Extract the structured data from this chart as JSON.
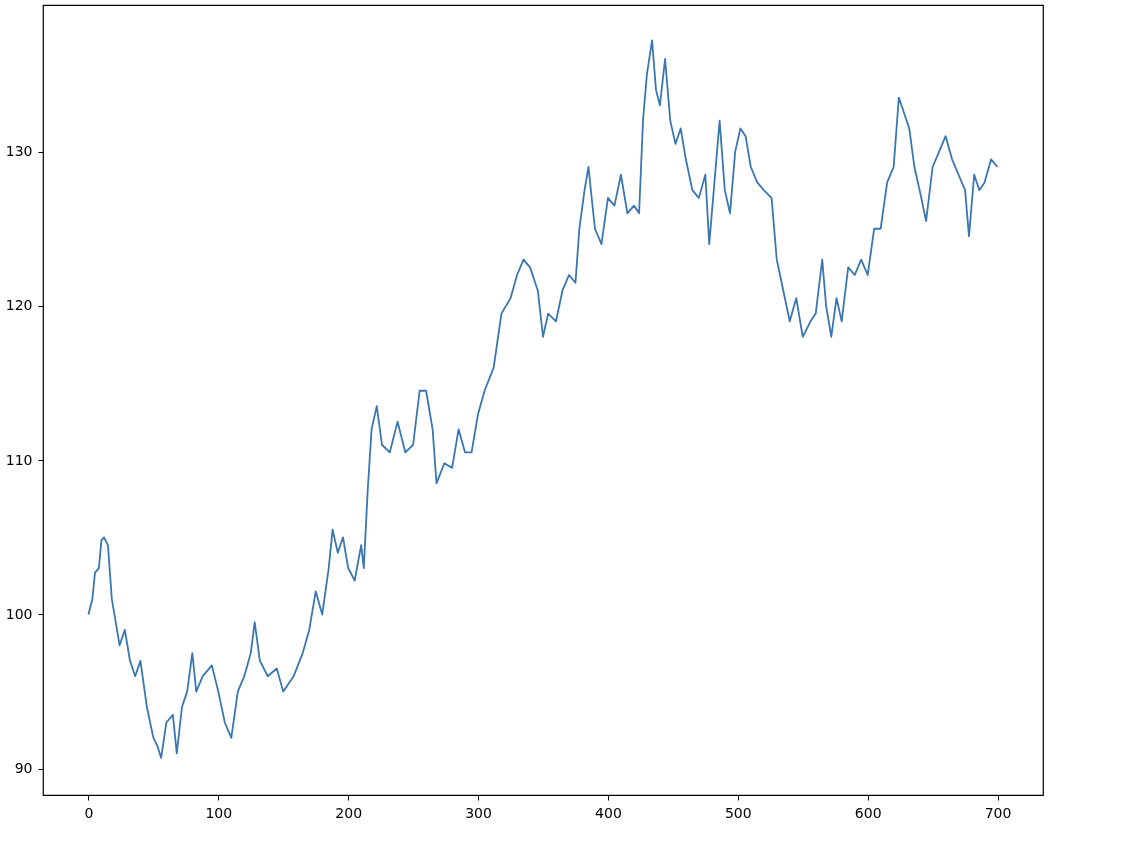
{
  "chart_data": {
    "type": "line",
    "xlim": [
      -35,
      735
    ],
    "ylim": [
      88.3,
      139.5
    ],
    "xticks": [
      0,
      100,
      200,
      300,
      400,
      500,
      600,
      700
    ],
    "yticks": [
      90,
      100,
      110,
      120,
      130
    ],
    "grid": false,
    "marker": "none",
    "line_style": "solid",
    "series": [
      {
        "color": "#3a76b1",
        "x": [
          0,
          3,
          5,
          8,
          10,
          12,
          15,
          18,
          20,
          24,
          28,
          32,
          36,
          40,
          45,
          50,
          53,
          56,
          60,
          65,
          68,
          72,
          76,
          80,
          83,
          88,
          95,
          100,
          105,
          110,
          115,
          120,
          125,
          128,
          132,
          138,
          145,
          150,
          158,
          165,
          170,
          175,
          180,
          185,
          188,
          192,
          196,
          200,
          205,
          210,
          212,
          215,
          218,
          222,
          226,
          232,
          238,
          244,
          250,
          255,
          260,
          265,
          268,
          274,
          280,
          285,
          290,
          295,
          300,
          305,
          312,
          318,
          325,
          330,
          335,
          340,
          346,
          350,
          354,
          360,
          365,
          370,
          375,
          378,
          382,
          385,
          390,
          395,
          400,
          405,
          410,
          415,
          420,
          424,
          427,
          430,
          434,
          437,
          440,
          444,
          448,
          452,
          456,
          460,
          465,
          470,
          475,
          478,
          482,
          486,
          490,
          494,
          498,
          502,
          506,
          510,
          515,
          520,
          526,
          530,
          535,
          540,
          545,
          550,
          556,
          560,
          565,
          568,
          572,
          576,
          580,
          585,
          590,
          595,
          600,
          605,
          610,
          615,
          620,
          624,
          628,
          632,
          636,
          640,
          645,
          650,
          655,
          660,
          665,
          670,
          675,
          678,
          682,
          686,
          690,
          695,
          700
        ],
        "values": [
          100,
          101,
          102.7,
          103,
          104.8,
          105,
          104.5,
          101,
          100,
          98,
          99,
          97,
          96,
          97,
          94,
          92,
          91.5,
          90.7,
          93,
          93.5,
          91,
          94,
          95,
          97.5,
          95,
          96,
          96.7,
          95,
          93,
          92,
          95,
          96,
          97.5,
          99.5,
          97,
          96,
          96.5,
          95,
          96,
          97.5,
          99,
          101.5,
          100,
          103,
          105.5,
          104,
          105,
          103,
          102.2,
          104.5,
          103,
          108,
          112,
          113.5,
          111,
          110.5,
          112.5,
          110.5,
          111,
          114.5,
          114.5,
          112,
          108.5,
          109.8,
          109.5,
          112,
          110.5,
          110.5,
          113,
          114.5,
          116,
          119.5,
          120.5,
          122,
          123,
          122.5,
          121,
          118,
          119.5,
          119,
          121,
          122,
          121.5,
          125,
          127.5,
          129,
          125,
          124,
          127,
          126.5,
          128.5,
          126,
          126.5,
          126,
          132,
          135,
          137.2,
          134,
          133,
          136,
          132,
          130.5,
          131.5,
          129.5,
          127.5,
          127,
          128.5,
          124,
          128,
          132,
          127.5,
          126,
          130,
          131.5,
          131,
          129,
          128,
          127.5,
          127,
          123,
          121,
          119,
          120.5,
          118,
          119,
          119.5,
          123,
          120,
          118,
          120.5,
          119,
          122.5,
          122,
          123,
          122,
          125,
          125,
          128,
          129,
          133.5,
          132.5,
          131.5,
          129,
          127.5,
          125.5,
          129,
          130,
          131,
          129.5,
          128.5,
          127.5,
          124.5,
          128.5,
          127.5,
          128,
          129.5,
          129
        ]
      }
    ]
  }
}
